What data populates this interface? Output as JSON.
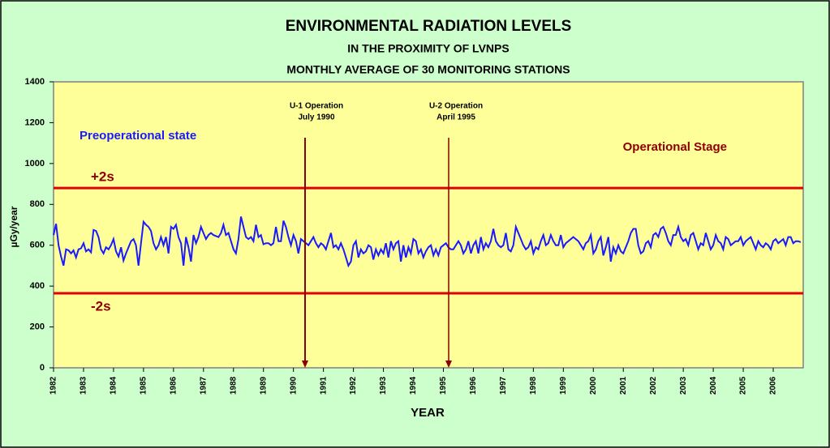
{
  "chart_data": {
    "type": "line",
    "title": "ENVIRONMENTAL RADIATION LEVELS",
    "subtitle": [
      "IN THE PROXIMITY OF LVNPS",
      "MONTHLY AVERAGE OF 30 MONITORING STATIONS"
    ],
    "x_label": "YEAR",
    "y_label": "µGy/year",
    "ylim": [
      0,
      1400
    ],
    "yticks": [
      0,
      200,
      400,
      600,
      800,
      1000,
      1200,
      1400
    ],
    "grid": false,
    "categories": [
      "1982",
      null,
      null,
      null,
      null,
      null,
      null,
      null,
      null,
      null,
      null,
      null,
      "1983",
      null,
      null,
      null,
      null,
      null,
      null,
      null,
      null,
      null,
      null,
      null,
      "1984",
      null,
      null,
      null,
      null,
      null,
      null,
      null,
      null,
      null,
      null,
      null,
      "1985",
      null,
      null,
      null,
      null,
      null,
      null,
      null,
      null,
      null,
      null,
      null,
      "1986",
      null,
      null,
      null,
      null,
      null,
      null,
      null,
      null,
      null,
      null,
      null,
      "1987",
      null,
      null,
      null,
      null,
      null,
      null,
      null,
      null,
      null,
      null,
      null,
      "1988",
      null,
      null,
      null,
      null,
      null,
      null,
      null,
      null,
      null,
      null,
      null,
      "1989",
      null,
      null,
      null,
      null,
      null,
      null,
      null,
      null,
      null,
      null,
      null,
      "1990",
      null,
      null,
      null,
      null,
      null,
      null,
      null,
      null,
      null,
      null,
      null,
      "1991",
      null,
      null,
      null,
      null,
      null,
      null,
      null,
      null,
      null,
      null,
      null,
      "1992",
      null,
      null,
      null,
      null,
      null,
      null,
      null,
      null,
      null,
      null,
      null,
      "1993",
      null,
      null,
      null,
      null,
      null,
      null,
      null,
      null,
      null,
      null,
      null,
      "1994",
      null,
      null,
      null,
      null,
      null,
      null,
      null,
      null,
      null,
      null,
      null,
      "1995",
      null,
      null,
      null,
      null,
      null,
      null,
      null,
      null,
      null,
      null,
      null,
      "1996",
      null,
      null,
      null,
      null,
      null,
      null,
      null,
      null,
      null,
      null,
      null,
      "1997",
      null,
      null,
      null,
      null,
      null,
      null,
      null,
      null,
      null,
      null,
      null,
      "1998",
      null,
      null,
      null,
      null,
      null,
      null,
      null,
      null,
      null,
      null,
      null,
      "1999",
      null,
      null,
      null,
      null,
      null,
      null,
      null,
      null,
      null,
      null,
      null,
      "2000",
      null,
      null,
      null,
      null,
      null,
      null,
      null,
      null,
      null,
      null,
      null,
      "2001",
      null,
      null,
      null,
      null,
      null,
      null,
      null,
      null,
      null,
      null,
      null,
      "2002",
      null,
      null,
      null,
      null,
      null,
      null,
      null,
      null,
      null,
      null,
      null,
      "2003",
      null,
      null,
      null,
      null,
      null,
      null,
      null,
      null,
      null,
      null,
      null,
      "2004",
      null,
      null,
      null,
      null,
      null,
      null,
      null,
      null,
      null,
      null,
      null,
      "2005",
      null,
      null,
      null,
      null,
      null,
      null,
      null,
      null,
      null,
      null,
      null,
      "2006",
      null,
      null,
      null,
      null,
      null,
      null,
      null,
      null,
      null,
      null,
      null
    ],
    "series": [
      {
        "color": "#1a1aff",
        "values": [
          650,
          705,
          600,
          545,
          500,
          580,
          575,
          560,
          575,
          540,
          580,
          585,
          610,
          570,
          580,
          565,
          675,
          670,
          640,
          580,
          560,
          590,
          580,
          600,
          630,
          570,
          545,
          590,
          525,
          560,
          590,
          620,
          630,
          600,
          500,
          610,
          715,
          700,
          690,
          670,
          610,
          580,
          600,
          640,
          600,
          640,
          560,
          690,
          680,
          700,
          640,
          610,
          500,
          640,
          590,
          520,
          650,
          610,
          640,
          690,
          660,
          630,
          650,
          660,
          650,
          645,
          640,
          660,
          700,
          650,
          660,
          620,
          580,
          560,
          630,
          740,
          690,
          640,
          630,
          640,
          620,
          700,
          640,
          650,
          605,
          610,
          610,
          600,
          610,
          690,
          620,
          620,
          720,
          690,
          640,
          600,
          650,
          620,
          560,
          630,
          620,
          610,
          600,
          620,
          640,
          610,
          590,
          610,
          600,
          580,
          620,
          660,
          590,
          600,
          580,
          610,
          580,
          540,
          500,
          520,
          600,
          620,
          540,
          580,
          560,
          570,
          600,
          590,
          530,
          580,
          550,
          580,
          560,
          610,
          540,
          620,
          580,
          610,
          620,
          520,
          600,
          540,
          590,
          560,
          630,
          620,
          560,
          580,
          540,
          570,
          590,
          600,
          550,
          580,
          550,
          590,
          600,
          610,
          590,
          580,
          580,
          600,
          620,
          600,
          560,
          580,
          620,
          560,
          600,
          620,
          560,
          640,
          580,
          610,
          590,
          620,
          680,
          620,
          600,
          590,
          600,
          660,
          580,
          570,
          600,
          690,
          660,
          630,
          600,
          580,
          590,
          620,
          560,
          590,
          580,
          620,
          650,
          600,
          610,
          650,
          620,
          600,
          600,
          650,
          590,
          610,
          620,
          630,
          640,
          630,
          620,
          600,
          580,
          610,
          620,
          650,
          560,
          580,
          620,
          640,
          550,
          590,
          640,
          520,
          590,
          560,
          600,
          570,
          560,
          590,
          620,
          660,
          680,
          680,
          600,
          560,
          570,
          610,
          620,
          590,
          650,
          660,
          640,
          680,
          690,
          660,
          620,
          600,
          650,
          650,
          690,
          640,
          620,
          630,
          600,
          650,
          660,
          620,
          580,
          610,
          600,
          660,
          620,
          580,
          600,
          650,
          620,
          610,
          580,
          640,
          630,
          600,
          610,
          620,
          620,
          640,
          600,
          620,
          630,
          640,
          610,
          580,
          620,
          600,
          590,
          610,
          600,
          580,
          620,
          630,
          610,
          620,
          630,
          600,
          640,
          640,
          610,
          620,
          620,
          615
        ]
      }
    ],
    "reference_lines": [
      {
        "label": "+2s",
        "value": 880,
        "color": "#e00000"
      },
      {
        "label": "-2s",
        "value": 365,
        "color": "#e00000"
      }
    ],
    "annotations": [
      {
        "lines": [
          "U-1 Operation",
          "July 1990"
        ]
      },
      {
        "lines": [
          "U-2  Operation",
          "April 1995"
        ]
      }
    ],
    "stage_labels": [
      {
        "text": "Preoperational state",
        "color": "#1a1aff"
      },
      {
        "text": "Operational Stage",
        "color": "#8b0000"
      }
    ]
  }
}
